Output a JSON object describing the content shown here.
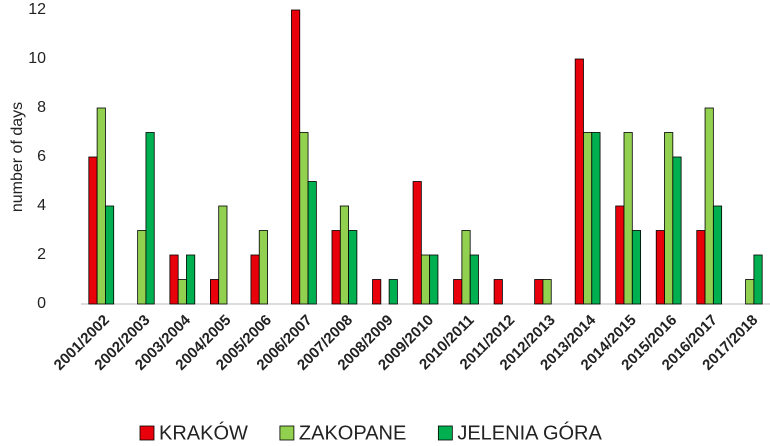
{
  "chart_data": {
    "type": "bar",
    "y_label": "number of days",
    "categories": [
      "2001/2002",
      "2002/2003",
      "2003/2004",
      "2004/2005",
      "2005/2006",
      "2006/2007",
      "2007/2008",
      "2008/2009",
      "2009/2010",
      "2010/2011",
      "2011/2012",
      "2012/2013",
      "2013/2014",
      "2014/2015",
      "2015/2016",
      "2016/2017",
      "2017/2018"
    ],
    "series": [
      {
        "name": "KRAKÓW",
        "color": "#e8000b",
        "values": [
          6,
          0,
          2,
          1,
          2,
          12,
          3,
          1,
          5,
          1,
          1,
          1,
          10,
          4,
          3,
          3,
          0
        ]
      },
      {
        "name": "ZAKOPANE",
        "color": "#92d050",
        "values": [
          8,
          3,
          1,
          4,
          3,
          7,
          4,
          0,
          2,
          3,
          0,
          1,
          7,
          7,
          7,
          8,
          1
        ]
      },
      {
        "name": "JELENIA GÓRA",
        "color": "#00b050",
        "values": [
          4,
          7,
          2,
          0,
          0,
          5,
          3,
          1,
          2,
          2,
          0,
          0,
          7,
          3,
          6,
          4,
          2
        ]
      }
    ],
    "ylim": [
      0,
      12
    ],
    "yticks": [
      0,
      2,
      4,
      6,
      8,
      10,
      12
    ],
    "grid": false,
    "legend": "bottom"
  }
}
